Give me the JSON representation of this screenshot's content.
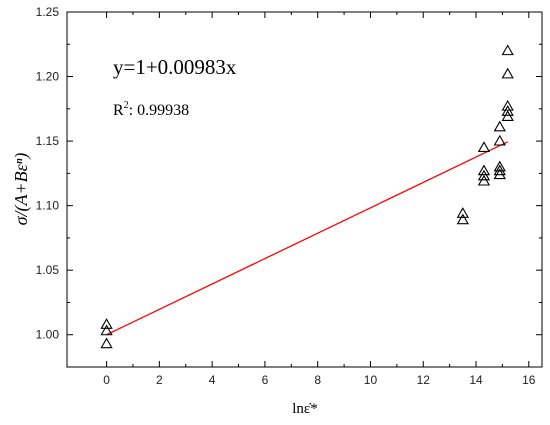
{
  "chart_data": {
    "type": "scatter",
    "xlabel": "lnε̇*",
    "ylabel": "σ/(A+Bεⁿ)",
    "xlim": [
      -1.5,
      16.5
    ],
    "ylim": [
      0.975,
      1.25
    ],
    "x_ticks": [
      "0",
      "2",
      "4",
      "6",
      "8",
      "10",
      "12",
      "14",
      "16"
    ],
    "y_ticks": [
      "1.00",
      "1.05",
      "1.10",
      "1.15",
      "1.20",
      "1.25"
    ],
    "grid": false,
    "legend": "none",
    "annotations": {
      "equation": "y=1+0.00983x",
      "r2_label": "R",
      "r2_exp": "2",
      "r2_value": ": 0.99938"
    },
    "series": [
      {
        "marker": "triangle-open",
        "color": "#000000",
        "points": [
          [
            0,
            1.008
          ],
          [
            0,
            1.003
          ],
          [
            0,
            0.993
          ],
          [
            13.5,
            1.094
          ],
          [
            13.5,
            1.089
          ],
          [
            14.3,
            1.145
          ],
          [
            14.3,
            1.127
          ],
          [
            14.3,
            1.123
          ],
          [
            14.3,
            1.119
          ],
          [
            14.9,
            1.161
          ],
          [
            14.9,
            1.15
          ],
          [
            14.9,
            1.13
          ],
          [
            14.9,
            1.127
          ],
          [
            14.9,
            1.124
          ],
          [
            15.2,
            1.22
          ],
          [
            15.2,
            1.202
          ],
          [
            15.2,
            1.177
          ],
          [
            15.2,
            1.173
          ],
          [
            15.2,
            1.169
          ]
        ]
      }
    ],
    "fit_line": {
      "intercept": 1,
      "slope": 0.00983,
      "x_range": [
        0,
        15.2
      ],
      "color": "#ff0000"
    }
  }
}
